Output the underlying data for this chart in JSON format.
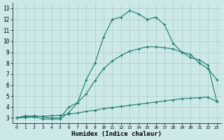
{
  "xlabel": "Humidex (Indice chaleur)",
  "bg_color": "#cce8e8",
  "line_color": "#1a7a6e",
  "grid_color": "#aacccc",
  "xlim": [
    -0.5,
    23.5
  ],
  "ylim": [
    2.5,
    13.5
  ],
  "xticks": [
    0,
    1,
    2,
    3,
    4,
    5,
    6,
    7,
    8,
    9,
    10,
    11,
    12,
    13,
    14,
    15,
    16,
    17,
    18,
    19,
    20,
    21,
    22,
    23
  ],
  "yticks": [
    3,
    4,
    5,
    6,
    7,
    8,
    9,
    10,
    11,
    12,
    13
  ],
  "line1_x": [
    0,
    1,
    2,
    3,
    4,
    5,
    6,
    7,
    8,
    9,
    10,
    11,
    12,
    13,
    14,
    15,
    16,
    17,
    18,
    19,
    20,
    21,
    22,
    23
  ],
  "line1_y": [
    3.0,
    3.2,
    3.1,
    2.9,
    2.9,
    2.9,
    3.5,
    4.4,
    6.5,
    8.0,
    10.4,
    12.0,
    12.2,
    12.8,
    12.5,
    12.0,
    12.2,
    11.5,
    9.8,
    9.0,
    8.8,
    8.0,
    7.5,
    6.5
  ],
  "line2_x": [
    0,
    1,
    2,
    3,
    4,
    5,
    6,
    7,
    8,
    9,
    10,
    11,
    12,
    13,
    14,
    15,
    16,
    17,
    18,
    19,
    20,
    21,
    22,
    23
  ],
  "line2_y": [
    3.0,
    3.05,
    3.1,
    3.15,
    3.2,
    3.25,
    3.35,
    3.45,
    3.6,
    3.7,
    3.85,
    3.95,
    4.05,
    4.15,
    4.25,
    4.35,
    4.45,
    4.55,
    4.65,
    4.75,
    4.8,
    4.85,
    4.9,
    4.5
  ],
  "line3_x": [
    0,
    1,
    2,
    3,
    4,
    5,
    6,
    7,
    8,
    9,
    10,
    11,
    12,
    13,
    14,
    15,
    16,
    17,
    18,
    19,
    20,
    21,
    22,
    23
  ],
  "line3_y": [
    3.0,
    3.1,
    3.2,
    3.1,
    3.0,
    3.0,
    4.0,
    4.4,
    5.2,
    6.4,
    7.5,
    8.2,
    8.7,
    9.1,
    9.3,
    9.5,
    9.5,
    9.4,
    9.3,
    9.0,
    8.5,
    8.3,
    7.8,
    4.5
  ]
}
